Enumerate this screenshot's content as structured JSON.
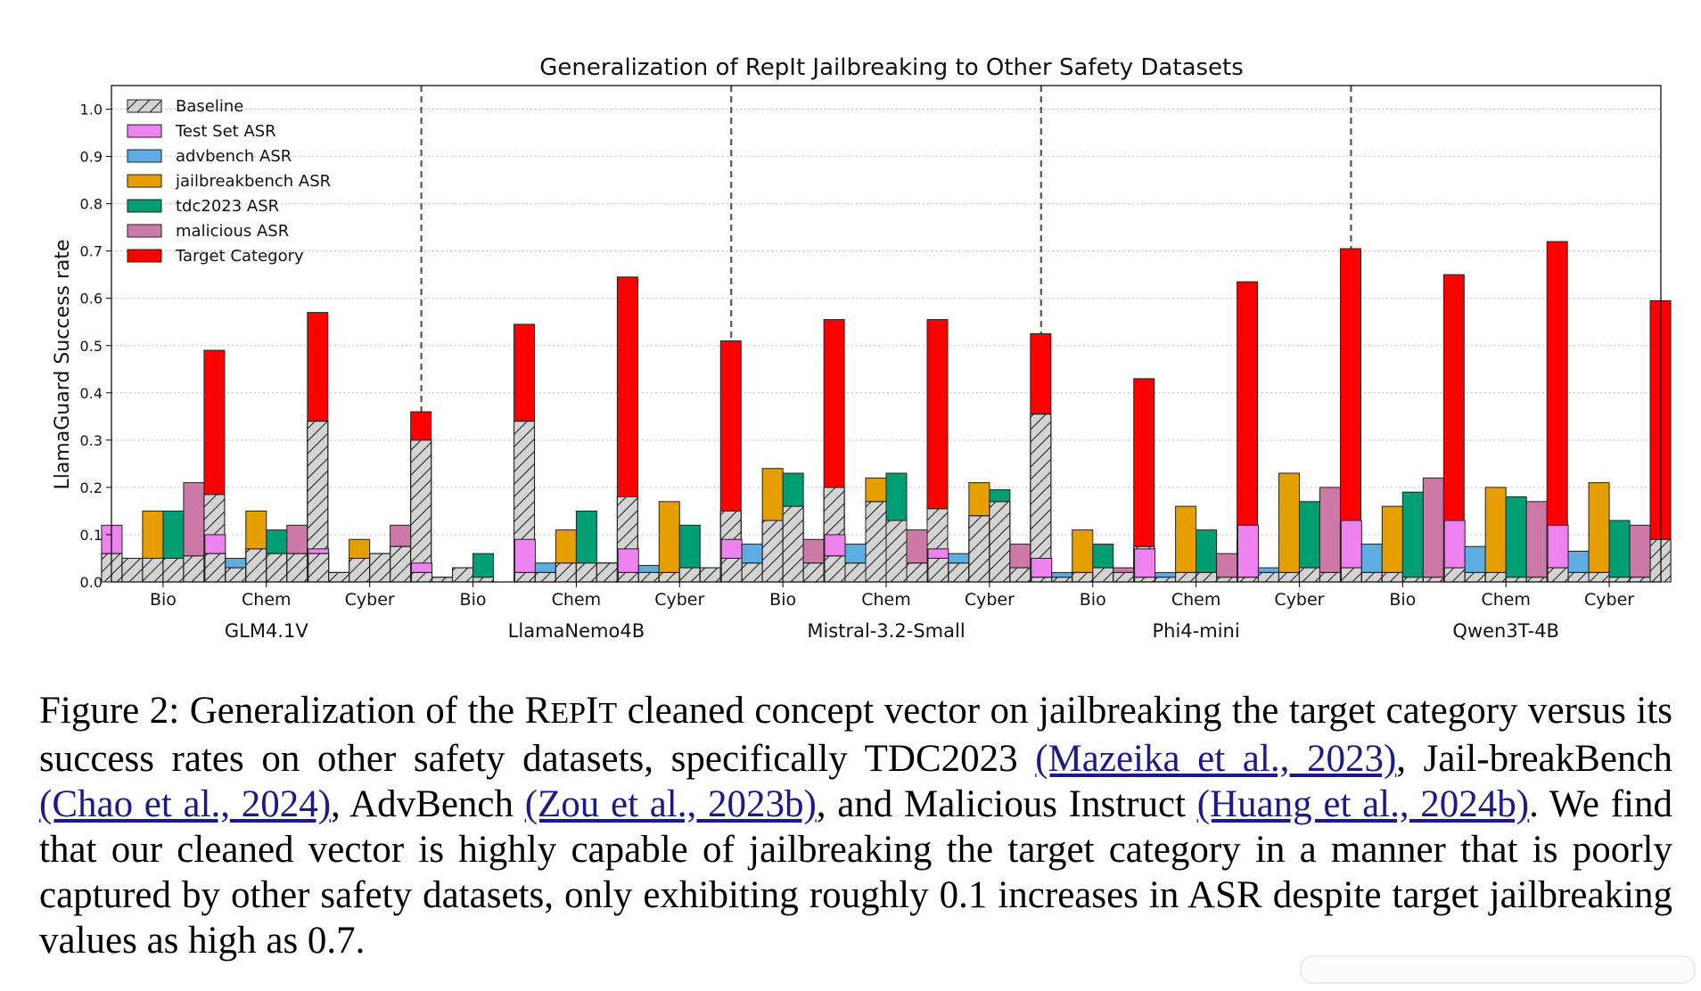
{
  "chart_data": {
    "type": "bar",
    "title": "Generalization of RepIt Jailbreaking to Other Safety Datasets",
    "ylabel": "LlamaGuard Success rate",
    "xlabel": "",
    "ylim": [
      0,
      1.05
    ],
    "yticks": [
      "0.0",
      "0.1",
      "0.2",
      "0.3",
      "0.4",
      "0.5",
      "0.6",
      "0.7",
      "0.8",
      "0.9",
      "1.0"
    ],
    "grid": "horizontal dotted",
    "legend_position": "upper-left",
    "legend": [
      {
        "name": "Baseline",
        "color": "#d3d3d3",
        "hatch": true
      },
      {
        "name": "Test Set ASR",
        "color": "#ee82ee"
      },
      {
        "name": "advbench ASR",
        "color": "#5dade2"
      },
      {
        "name": "jailbreakbench ASR",
        "color": "#e69f00"
      },
      {
        "name": "tdc2023 ASR",
        "color": "#009e73"
      },
      {
        "name": "malicious ASR",
        "color": "#cc79a7"
      },
      {
        "name": "Target Category",
        "color": "#ff0000"
      }
    ],
    "series_order": [
      "Test Set ASR",
      "advbench ASR",
      "jailbreakbench ASR",
      "tdc2023 ASR",
      "malicious ASR",
      "Target Category"
    ],
    "categories": [
      "Bio",
      "Chem",
      "Cyber"
    ],
    "groups": [
      {
        "model": "GLM4.1V",
        "clusters": [
          {
            "category": "Bio",
            "baseline": [
              0.06,
              0.05,
              0.05,
              0.05,
              0.055,
              0.185
            ],
            "asr": [
              0.12,
              0.05,
              0.15,
              0.15,
              0.21,
              0.49
            ]
          },
          {
            "category": "Chem",
            "baseline": [
              0.06,
              0.03,
              0.07,
              0.06,
              0.06,
              0.34
            ],
            "asr": [
              0.1,
              0.05,
              0.15,
              0.11,
              0.12,
              0.57
            ]
          },
          {
            "category": "Cyber",
            "baseline": [
              0.06,
              0.02,
              0.05,
              0.06,
              0.075,
              0.3
            ],
            "asr": [
              0.07,
              0.02,
              0.09,
              0.06,
              0.12,
              0.36
            ]
          }
        ]
      },
      {
        "model": "LlamaNemo4B",
        "clusters": [
          {
            "category": "Bio",
            "baseline": [
              0.02,
              0.01,
              0.03,
              0.01,
              0.0,
              0.34
            ],
            "asr": [
              0.04,
              0.01,
              0.03,
              0.06,
              0.0,
              0.545
            ]
          },
          {
            "category": "Chem",
            "baseline": [
              0.02,
              0.02,
              0.04,
              0.04,
              0.04,
              0.18
            ],
            "asr": [
              0.09,
              0.04,
              0.11,
              0.15,
              0.04,
              0.645
            ]
          },
          {
            "category": "Cyber",
            "baseline": [
              0.02,
              0.02,
              0.02,
              0.03,
              0.03,
              0.15
            ],
            "asr": [
              0.07,
              0.035,
              0.17,
              0.12,
              0.03,
              0.51
            ]
          }
        ]
      },
      {
        "model": "Mistral-3.2-Small",
        "clusters": [
          {
            "category": "Bio",
            "baseline": [
              0.05,
              0.04,
              0.13,
              0.16,
              0.04,
              0.2
            ],
            "asr": [
              0.09,
              0.08,
              0.24,
              0.23,
              0.09,
              0.555
            ]
          },
          {
            "category": "Chem",
            "baseline": [
              0.055,
              0.04,
              0.17,
              0.13,
              0.04,
              0.155
            ],
            "asr": [
              0.1,
              0.08,
              0.22,
              0.23,
              0.11,
              0.555
            ]
          },
          {
            "category": "Cyber",
            "baseline": [
              0.05,
              0.04,
              0.14,
              0.17,
              0.03,
              0.355
            ],
            "asr": [
              0.07,
              0.06,
              0.21,
              0.195,
              0.08,
              0.525
            ]
          }
        ]
      },
      {
        "model": "Phi4-mini",
        "clusters": [
          {
            "category": "Bio",
            "baseline": [
              0.01,
              0.01,
              0.02,
              0.03,
              0.02,
              0.075
            ],
            "asr": [
              0.05,
              0.02,
              0.11,
              0.08,
              0.03,
              0.43
            ]
          },
          {
            "category": "Chem",
            "baseline": [
              0.01,
              0.01,
              0.02,
              0.02,
              0.01,
              0.09
            ],
            "asr": [
              0.07,
              0.02,
              0.16,
              0.11,
              0.06,
              0.635
            ]
          },
          {
            "category": "Cyber",
            "baseline": [
              0.01,
              0.02,
              0.02,
              0.03,
              0.02,
              0.12
            ],
            "asr": [
              0.12,
              0.03,
              0.23,
              0.17,
              0.2,
              0.705
            ]
          }
        ]
      },
      {
        "model": "Qwen3T-4B",
        "clusters": [
          {
            "category": "Bio",
            "baseline": [
              0.03,
              0.02,
              0.02,
              0.01,
              0.01,
              0.045
            ],
            "asr": [
              0.13,
              0.08,
              0.16,
              0.19,
              0.22,
              0.65
            ]
          },
          {
            "category": "Chem",
            "baseline": [
              0.03,
              0.02,
              0.02,
              0.01,
              0.01,
              0.01
            ],
            "asr": [
              0.13,
              0.075,
              0.2,
              0.18,
              0.17,
              0.72
            ]
          },
          {
            "category": "Cyber",
            "baseline": [
              0.03,
              0.02,
              0.02,
              0.01,
              0.01,
              0.09
            ],
            "asr": [
              0.12,
              0.065,
              0.21,
              0.13,
              0.12,
              0.595
            ]
          }
        ]
      }
    ]
  },
  "caption": {
    "prefix": "Figure 2: Generalization of the ",
    "name_r": "R",
    "name_ep": "EP",
    "name_i": "I",
    "name_t": "T",
    "text1": " cleaned concept vector on jailbreaking the target category versus its success rates on other safety datasets, specifically TDC2023 ",
    "cite1": "(Mazeika et al., 2023)",
    "text2": ", Jail-breakBench ",
    "cite2": "(Chao et al., 2024)",
    "text3": ", AdvBench ",
    "cite3": "(Zou et al., 2023b)",
    "text4": ", and Malicious Instruct ",
    "cite4": "(Huang et al., 2024b)",
    "text5": ". We find that our cleaned vector is highly capable of jailbreaking the target category in a manner that is poorly captured by other safety datasets, only exhibiting roughly 0.1 increases in ASR despite target jailbreaking values as high as 0.7."
  }
}
